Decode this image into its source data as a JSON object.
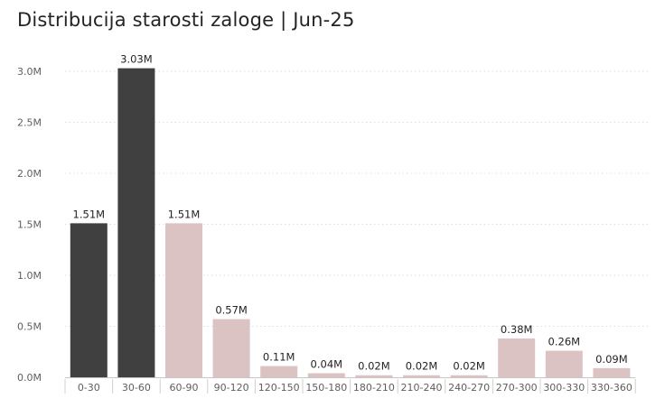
{
  "chart_data": {
    "type": "bar",
    "title": "Distribucija starosti zaloge | Jun-25",
    "xlabel": "",
    "ylabel": "",
    "categories": [
      "0-30",
      "30-60",
      "60-90",
      "90-120",
      "120-150",
      "150-180",
      "180-210",
      "210-240",
      "240-270",
      "270-300",
      "300-330",
      "330-360"
    ],
    "values": [
      1.51,
      3.03,
      1.51,
      0.57,
      0.11,
      0.04,
      0.02,
      0.02,
      0.02,
      0.38,
      0.26,
      0.09
    ],
    "data_labels": [
      "1.51M",
      "3.03M",
      "1.51M",
      "0.57M",
      "0.11M",
      "0.04M",
      "0.02M",
      "0.02M",
      "0.02M",
      "0.38M",
      "0.26M",
      "0.09M"
    ],
    "highlighted": [
      true,
      true,
      false,
      false,
      false,
      false,
      false,
      false,
      false,
      false,
      false,
      false
    ],
    "ylim": [
      0,
      3.0
    ],
    "yticks": [
      0,
      0.5,
      1.0,
      1.5,
      2.0,
      2.5,
      3.0
    ],
    "ytick_labels": [
      "0.0M",
      "0.5M",
      "1.0M",
      "1.5M",
      "2.0M",
      "2.5M",
      "3.0M"
    ],
    "grid": true,
    "legend": "none",
    "colors": {
      "highlight": "#404040",
      "default": "#dcc3c3",
      "grid": "#e1dfdd",
      "text": "#252423",
      "axis_text": "#605e5c"
    }
  }
}
